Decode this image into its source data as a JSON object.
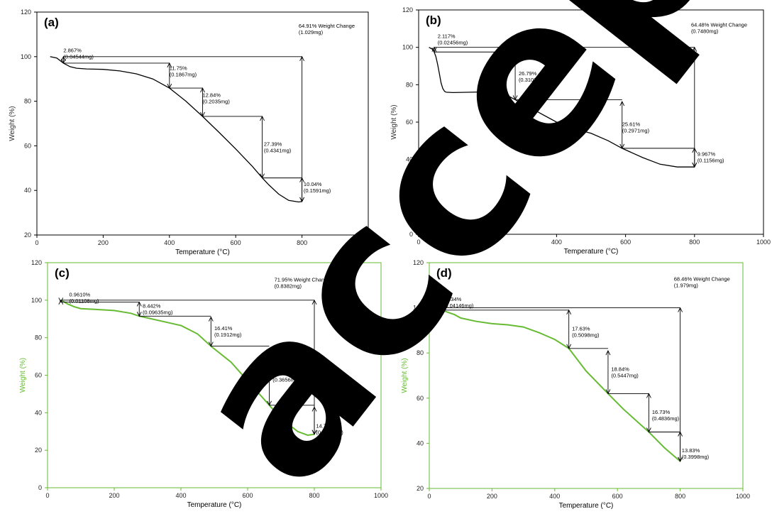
{
  "chart_data": [
    {
      "panel": "(a)",
      "type": "line",
      "color": "#000000",
      "xlabel": "Temperature (°C)",
      "ylabel": "Weight (%)",
      "xlim": [
        0,
        1000
      ],
      "ylim": [
        20,
        120
      ],
      "xticks": [
        0,
        200,
        400,
        600,
        800,
        1000
      ],
      "yticks": [
        20,
        40,
        60,
        80,
        100,
        120
      ],
      "series": [
        {
          "x": [
            40,
            60,
            80,
            100,
            120,
            150,
            200,
            250,
            300,
            350,
            400,
            450,
            500,
            550,
            600,
            650,
            680,
            700,
            730,
            760,
            790,
            800
          ],
          "y": [
            100,
            99.4,
            97.1,
            95.5,
            94.8,
            94.5,
            94.3,
            93.6,
            92.3,
            90.0,
            85.9,
            80.0,
            73.2,
            66.0,
            58.6,
            50.8,
            45.6,
            42.5,
            38.3,
            35.5,
            34.8,
            35.0
          ]
        }
      ],
      "annotations": [
        {
          "text": "2.867%\n(0.04544mg)",
          "x": 80,
          "y": 102,
          "arrow": [
            80,
            100,
            97.1
          ]
        },
        {
          "text": "11.75%\n(0.1867mg)",
          "x": 400,
          "y": 94,
          "arrow": [
            400,
            97.1,
            85.9
          ]
        },
        {
          "text": "12.84%\n(0.2035mg)",
          "x": 500,
          "y": 82,
          "arrow": [
            500,
            85.9,
            73.2
          ]
        },
        {
          "text": "27.39%\n(0.4341mg)",
          "x": 685,
          "y": 60,
          "arrow": [
            680,
            73.2,
            45.6
          ]
        },
        {
          "text": "10.04%\n(0.1591mg)",
          "x": 805,
          "y": 42,
          "arrow": [
            800,
            45.6,
            35.0
          ]
        },
        {
          "text": "64.91% Weight Change\n(1.029mg)",
          "x": 790,
          "y": 113,
          "arrow": [
            800,
            100,
            35.0
          ]
        }
      ]
    },
    {
      "panel": "(b)",
      "type": "line",
      "color": "#000000",
      "xlabel": "Temperature (°C)",
      "ylabel": "Weight (%)",
      "xlim": [
        0,
        1000
      ],
      "ylim": [
        0,
        120
      ],
      "xticks": [
        0,
        200,
        400,
        600,
        800,
        1000
      ],
      "yticks": [
        0,
        20,
        40,
        60,
        80,
        100,
        120
      ],
      "series": [
        {
          "x": [
            30,
            40,
            45,
            50,
            55,
            60,
            65,
            70,
            75,
            80,
            100,
            150,
            200,
            250,
            280,
            300,
            350,
            400,
            450,
            500,
            550,
            590,
            650,
            700,
            750,
            800
          ],
          "y": [
            100,
            99,
            97.5,
            95,
            91,
            86,
            81,
            78,
            76.5,
            76,
            75.8,
            76,
            76.2,
            75,
            72,
            70,
            65,
            60,
            56.5,
            54,
            50,
            46,
            41,
            37.5,
            36,
            36
          ]
        }
      ],
      "annotations": [
        {
          "text": "2.117%\n(0.02456mg)",
          "x": 55,
          "y": 105,
          "arrow": [
            45,
            100,
            97.5
          ]
        },
        {
          "text": "26.79%\n(0.3107mg)",
          "x": 290,
          "y": 85,
          "arrow": [
            280,
            98,
            72
          ]
        },
        {
          "text": "25.61%\n(0.2971mg)",
          "x": 590,
          "y": 58,
          "arrow": [
            590,
            71,
            46
          ]
        },
        {
          "text": "9.967%\n(0.1156mg)",
          "x": 808,
          "y": 42,
          "arrow": [
            800,
            46,
            36
          ]
        },
        {
          "text": "64.48% Weight Change\n(0.7480mg)",
          "x": 790,
          "y": 111,
          "arrow": [
            800,
            100,
            36
          ]
        }
      ]
    },
    {
      "panel": "(c)",
      "type": "line",
      "color": "#66bb33",
      "xlabel": "Temperature (°C)",
      "ylabel": "Weight (%)",
      "xlim": [
        0,
        1000
      ],
      "ylim": [
        0,
        120
      ],
      "xticks": [
        0,
        200,
        400,
        600,
        800,
        1000
      ],
      "yticks": [
        0,
        20,
        40,
        60,
        80,
        100,
        120
      ],
      "series": [
        {
          "x": [
            40,
            60,
            80,
            100,
            150,
            200,
            250,
            275,
            300,
            350,
            400,
            450,
            490,
            550,
            600,
            650,
            665,
            700,
            750,
            780,
            800
          ],
          "y": [
            100,
            98,
            96.5,
            95.5,
            95,
            94.5,
            93,
            91.5,
            90.5,
            88.5,
            86.5,
            82,
            75.5,
            67,
            57,
            47,
            44,
            37,
            30,
            28,
            28.5
          ]
        }
      ],
      "annotations": [
        {
          "text": "0.9610%\n(0.01108mg)",
          "x": 65,
          "y": 102,
          "arrow": [
            40,
            100,
            99
          ]
        },
        {
          "text": "8.442%\n(0.09635mg)",
          "x": 285,
          "y": 96,
          "arrow": [
            275,
            99,
            91.5
          ]
        },
        {
          "text": "16.41%\n(0.1912mg)",
          "x": 500,
          "y": 84,
          "arrow": [
            490,
            91,
            75.5
          ]
        },
        {
          "text": "31.39%\n(0.3656mg)",
          "x": 675,
          "y": 60,
          "arrow": [
            665,
            74,
            44
          ]
        },
        {
          "text": "14.76%\n(0.1719mg)",
          "x": 805,
          "y": 32,
          "arrow": [
            800,
            43,
            28.5
          ]
        },
        {
          "text": "71.95% Weight Change\n(0.8382mg)",
          "x": 680,
          "y": 110,
          "arrow": [
            800,
            100,
            28.5
          ]
        }
      ]
    },
    {
      "panel": "(d)",
      "type": "line",
      "color": "#66bb33",
      "xlabel": "Temperature (°C)",
      "ylabel": "Weight (%)",
      "xlim": [
        0,
        1000
      ],
      "ylim": [
        20,
        120
      ],
      "xticks": [
        0,
        200,
        400,
        600,
        800,
        1000
      ],
      "yticks": [
        20,
        40,
        60,
        80,
        100,
        120
      ],
      "series": [
        {
          "x": [
            35,
            50,
            80,
            100,
            150,
            200,
            250,
            300,
            350,
            400,
            445,
            500,
            570,
            620,
            700,
            750,
            800
          ],
          "y": [
            100,
            98.5,
            97,
            95.5,
            94,
            93,
            92.5,
            91.5,
            89,
            86,
            82,
            72,
            62,
            55,
            45,
            38,
            32
          ]
        }
      ],
      "annotations": [
        {
          "text": "1.434%\n(0.04146mg)",
          "x": 45,
          "y": 103,
          "arrow": [
            40,
            100,
            99
          ]
        },
        {
          "text": "17.63%\n(0.5098mg)",
          "x": 455,
          "y": 90,
          "arrow": [
            445,
            99,
            82
          ]
        },
        {
          "text": "18.84%\n(0.5447mg)",
          "x": 580,
          "y": 72,
          "arrow": [
            570,
            81,
            62
          ]
        },
        {
          "text": "16.73%\n(0.4836mg)",
          "x": 710,
          "y": 53,
          "arrow": [
            700,
            62,
            45
          ]
        },
        {
          "text": "13.83%\n(0.3998mg)",
          "x": 805,
          "y": 36,
          "arrow": [
            800,
            45,
            32
          ]
        },
        {
          "text": "68.46% Weight Change\n(1.979mg)",
          "x": 780,
          "y": 112,
          "arrow": [
            800,
            100,
            32
          ]
        }
      ]
    }
  ],
  "watermark": {
    "text": "accepted",
    "color": "#000000"
  }
}
